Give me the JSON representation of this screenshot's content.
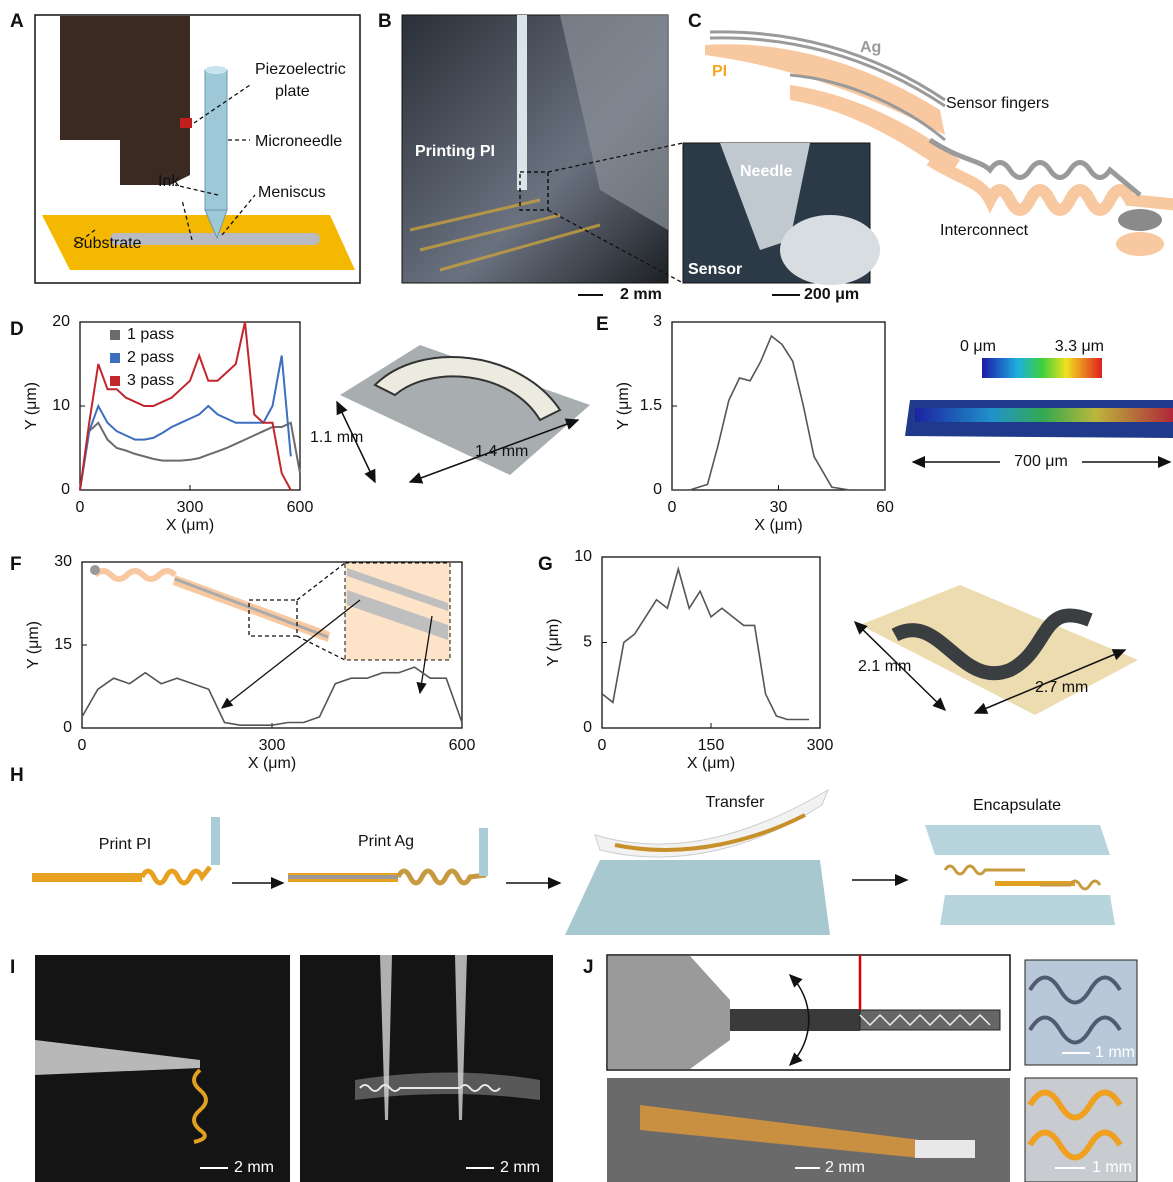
{
  "panel_labels": [
    "A",
    "B",
    "C",
    "D",
    "E",
    "F",
    "G",
    "H",
    "I",
    "J"
  ],
  "panel_a": {
    "piezoelectric_plate": [
      "Piezoelectric",
      "plate"
    ],
    "microneedle": "Microneedle",
    "ink": "Ink",
    "meniscus": "Meniscus",
    "substrate": "Substrate"
  },
  "panel_b": {
    "printing": "Printing PI",
    "needle": "Needle",
    "sensor": "Sensor",
    "scale_main": "2 mm",
    "scale_inset": "200 μm"
  },
  "panel_c": {
    "ag": "Ag",
    "pi": "PI",
    "fingers": "Sensor fingers",
    "interconnect": "Interconnect"
  },
  "panel_d": {
    "width": "1.1 mm",
    "length": "1.4 mm"
  },
  "panel_e": {
    "colorbar_min": "0 μm",
    "colorbar_max": "3.3 μm",
    "length": "700 μm"
  },
  "panel_g": {
    "width": "2.1 mm",
    "length": "2.7 mm"
  },
  "panel_h": {
    "steps": [
      "Print PI",
      "Print Ag",
      "Transfer",
      "Encapsulate"
    ]
  },
  "panel_i": {
    "scales": [
      "2 mm",
      "2 mm"
    ]
  },
  "panel_j": {
    "scales": [
      "1 mm",
      "2 mm",
      "1 mm"
    ]
  },
  "chart_data": [
    {
      "type": "line",
      "xlabel": "X (μm)",
      "ylabel": "Y (μm)",
      "xlim": [
        0,
        600
      ],
      "ylim": [
        0,
        20
      ],
      "xticks": [
        0,
        300,
        600
      ],
      "yticks": [
        0,
        10,
        20
      ],
      "legend": "upper left",
      "x": [
        0,
        25,
        50,
        75,
        100,
        125,
        150,
        175,
        200,
        225,
        250,
        275,
        300,
        325,
        350,
        375,
        400,
        425,
        450,
        475,
        500,
        525,
        550,
        575,
        600
      ],
      "series": [
        {
          "name": "1 pass",
          "color": "#6b6b6b",
          "values": [
            0,
            7,
            8,
            6,
            5,
            4.7,
            4.3,
            4,
            3.7,
            3.5,
            3.5,
            3.5,
            3.6,
            3.8,
            4.2,
            4.6,
            5,
            5.5,
            6,
            6.5,
            7,
            7.5,
            7.5,
            8,
            2
          ]
        },
        {
          "name": "2 pass",
          "color": "#3c6fbf",
          "values": [
            0,
            7,
            10,
            8,
            7,
            6.5,
            6,
            6,
            6.2,
            6.8,
            7.5,
            8,
            8.5,
            9,
            10,
            9,
            8.5,
            8,
            8,
            8,
            8,
            10,
            16,
            4,
            null
          ]
        },
        {
          "name": "3 pass",
          "color": "#c1272d",
          "values": [
            0,
            8,
            15,
            12,
            12,
            11,
            10.5,
            10,
            10,
            10.5,
            11,
            12,
            13,
            16,
            13,
            13,
            14,
            15,
            20,
            9,
            8,
            8,
            2,
            0,
            null
          ]
        }
      ]
    },
    {
      "type": "line",
      "xlabel": "X (μm)",
      "ylabel": "Y (μm)",
      "xlim": [
        0,
        60
      ],
      "ylim": [
        0,
        3
      ],
      "xticks": [
        0,
        30,
        60
      ],
      "yticks": [
        0,
        1.5,
        3
      ],
      "color": "#555555",
      "x": [
        0,
        5,
        10,
        13,
        16,
        19,
        22,
        25,
        28,
        31,
        34,
        37,
        40,
        45,
        50,
        55,
        60
      ],
      "values": [
        0,
        0,
        0.1,
        0.8,
        1.6,
        2.0,
        1.95,
        2.3,
        2.75,
        2.6,
        2.3,
        1.5,
        0.6,
        0.05,
        0,
        0,
        0
      ]
    },
    {
      "type": "line",
      "xlabel": "X (μm)",
      "ylabel": "Y (μm)",
      "xlim": [
        0,
        600
      ],
      "ylim": [
        0,
        30
      ],
      "xticks": [
        0,
        300,
        600
      ],
      "yticks": [
        0,
        15,
        30
      ],
      "color": "#555555",
      "x": [
        0,
        25,
        50,
        75,
        100,
        125,
        150,
        175,
        200,
        225,
        250,
        275,
        300,
        325,
        350,
        375,
        400,
        425,
        450,
        475,
        500,
        525,
        550,
        575,
        600
      ],
      "values": [
        2,
        7,
        9,
        8,
        10,
        8,
        9,
        8,
        7,
        1,
        0.5,
        0.5,
        0.5,
        1,
        1,
        2,
        8,
        9,
        9,
        10,
        10,
        11,
        9,
        9,
        1
      ]
    },
    {
      "type": "line",
      "xlabel": "X (μm)",
      "ylabel": "Y (μm)",
      "xlim": [
        0,
        300
      ],
      "ylim": [
        0,
        10
      ],
      "xticks": [
        0,
        150,
        300
      ],
      "yticks": [
        0,
        5,
        10
      ],
      "color": "#555555",
      "x": [
        0,
        15,
        30,
        45,
        60,
        75,
        90,
        105,
        120,
        135,
        150,
        165,
        180,
        195,
        210,
        225,
        240,
        255,
        270,
        285,
        300
      ],
      "values": [
        2,
        1.5,
        5,
        5.5,
        6.5,
        7.5,
        7,
        9.3,
        7,
        8,
        6.5,
        7,
        6.5,
        6,
        6,
        2,
        0.7,
        0.5,
        0.5,
        0.5,
        null
      ]
    }
  ]
}
